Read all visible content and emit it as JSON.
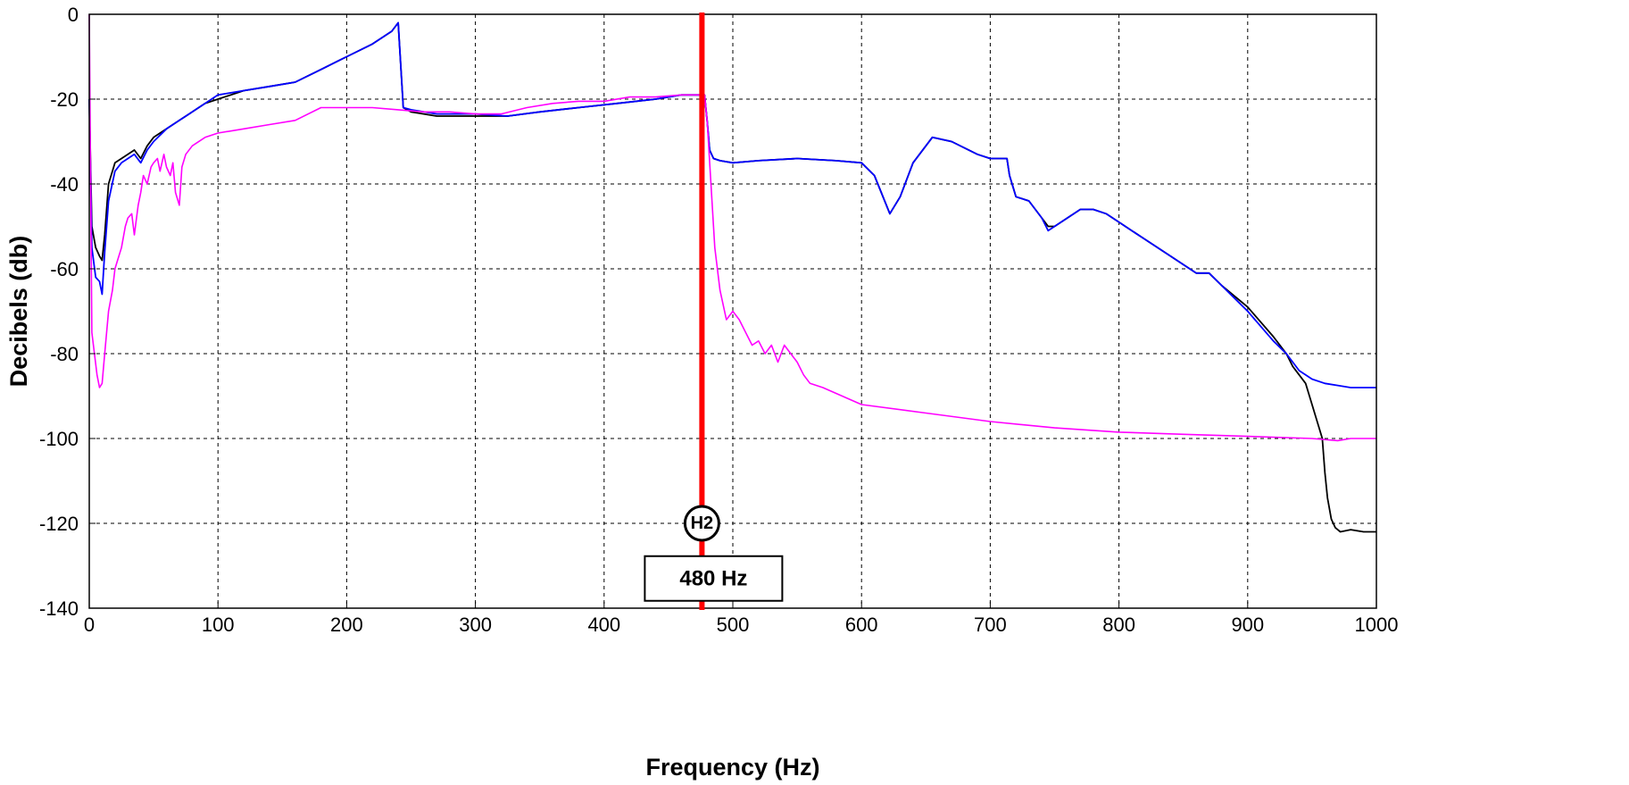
{
  "chart_data": {
    "type": "line",
    "title": "",
    "xlabel": "Frequency (Hz)",
    "ylabel": "Decibels (db)",
    "xlim": [
      0,
      1000
    ],
    "ylim": [
      -140,
      0
    ],
    "xticks": [
      0,
      100,
      200,
      300,
      400,
      500,
      600,
      700,
      800,
      900,
      1000
    ],
    "yticks": [
      0,
      -20,
      -40,
      -60,
      -80,
      -100,
      -120,
      -140
    ],
    "grid": true,
    "series": [
      {
        "color": "#000000",
        "x": [
          0,
          2,
          5,
          8,
          10,
          12,
          15,
          20,
          25,
          30,
          35,
          40,
          45,
          50,
          60,
          70,
          80,
          90,
          100,
          120,
          140,
          160,
          180,
          200,
          220,
          235,
          240,
          244,
          250,
          270,
          300,
          325,
          350,
          380,
          410,
          440,
          460,
          476,
          478,
          480,
          482,
          485,
          490,
          500,
          520,
          550,
          580,
          600,
          610,
          622,
          630,
          640,
          655,
          670,
          690,
          700,
          713,
          715,
          720,
          730,
          740,
          745,
          750,
          760,
          770,
          780,
          790,
          800,
          820,
          840,
          860,
          870,
          880,
          900,
          920,
          930,
          935,
          940,
          945,
          950,
          955,
          958,
          960,
          962,
          965,
          968,
          972,
          980,
          990,
          1000
        ],
        "y": [
          -20,
          -50,
          -55,
          -57,
          -58,
          -52,
          -40,
          -35,
          -34,
          -33,
          -32,
          -34,
          -31,
          -29,
          -27,
          -25,
          -23,
          -21,
          -20,
          -18,
          -17,
          -16,
          -13,
          -10,
          -7,
          -4,
          -2,
          -22,
          -23,
          -24,
          -24,
          -24,
          -23,
          -22,
          -21,
          -20,
          -19,
          -19,
          -19,
          -25,
          -32,
          -34,
          -34.5,
          -35,
          -34.5,
          -34,
          -34.5,
          -35,
          -38,
          -47,
          -43,
          -35,
          -29,
          -30,
          -33,
          -34,
          -34,
          -38,
          -43,
          -44,
          -48,
          -50,
          -50,
          -48,
          -46,
          -46,
          -47,
          -49,
          -53,
          -57,
          -61,
          -61,
          -64,
          -69,
          -76,
          -80,
          -83,
          -85,
          -87,
          -92,
          -97,
          -100,
          -108,
          -114,
          -119,
          -121,
          -122,
          -121.5,
          -122,
          -122
        ]
      },
      {
        "color": "#0000ff",
        "x": [
          0,
          2,
          5,
          8,
          10,
          12,
          15,
          20,
          25,
          30,
          35,
          40,
          45,
          50,
          60,
          70,
          80,
          90,
          100,
          120,
          140,
          160,
          180,
          200,
          220,
          235,
          240,
          244,
          250,
          270,
          300,
          325,
          350,
          380,
          410,
          440,
          460,
          476,
          478,
          480,
          482,
          485,
          490,
          500,
          520,
          550,
          580,
          600,
          610,
          622,
          630,
          640,
          655,
          670,
          690,
          700,
          713,
          715,
          720,
          730,
          740,
          745,
          750,
          760,
          770,
          780,
          790,
          800,
          820,
          840,
          860,
          870,
          880,
          900,
          920,
          930,
          940,
          950,
          960,
          970,
          980,
          1000
        ],
        "y": [
          -20,
          -55,
          -62,
          -63,
          -66,
          -56,
          -44,
          -37,
          -35,
          -34,
          -33,
          -35,
          -32,
          -30,
          -27,
          -25,
          -23,
          -21,
          -19,
          -18,
          -17,
          -16,
          -13,
          -10,
          -7,
          -4,
          -2,
          -22,
          -22.5,
          -23.5,
          -23.5,
          -24,
          -23,
          -22,
          -21,
          -20,
          -19,
          -19,
          -19,
          -25,
          -32,
          -34,
          -34.5,
          -35,
          -34.5,
          -34,
          -34.5,
          -35,
          -38,
          -47,
          -43,
          -35,
          -29,
          -30,
          -33,
          -34,
          -34,
          -38,
          -43,
          -44,
          -48,
          -51,
          -50,
          -48,
          -46,
          -46,
          -47,
          -49,
          -53,
          -57,
          -61,
          -61,
          -64,
          -70,
          -77,
          -80,
          -84,
          -86,
          -87,
          -87.5,
          -88,
          -88
        ]
      },
      {
        "color": "#ff00ff",
        "x": [
          0,
          2,
          4,
          6,
          8,
          10,
          12,
          15,
          18,
          20,
          22,
          25,
          28,
          30,
          33,
          35,
          38,
          40,
          42,
          45,
          48,
          50,
          53,
          55,
          58,
          60,
          63,
          65,
          67,
          70,
          72,
          75,
          80,
          90,
          100,
          120,
          140,
          160,
          180,
          200,
          220,
          240,
          260,
          280,
          300,
          320,
          340,
          360,
          380,
          400,
          420,
          440,
          460,
          476,
          478,
          480,
          483,
          486,
          490,
          495,
          500,
          505,
          510,
          515,
          520,
          525,
          530,
          535,
          540,
          545,
          550,
          555,
          560,
          570,
          600,
          650,
          700,
          750,
          800,
          850,
          900,
          950,
          970,
          980,
          1000
        ],
        "y": [
          0,
          -75,
          -80,
          -85,
          -88,
          -87,
          -80,
          -70,
          -65,
          -60,
          -58,
          -55,
          -50,
          -48,
          -47,
          -52,
          -45,
          -42,
          -38,
          -40,
          -36,
          -35,
          -34,
          -37,
          -33,
          -36,
          -38,
          -35,
          -42,
          -45,
          -36,
          -33,
          -31,
          -29,
          -28,
          -27,
          -26,
          -25,
          -22,
          -22,
          -22,
          -22.5,
          -23,
          -23,
          -23.5,
          -23.5,
          -22,
          -21,
          -20.5,
          -20.5,
          -19.5,
          -19.5,
          -19,
          -19,
          -19,
          -25,
          -40,
          -55,
          -65,
          -72,
          -70,
          -72,
          -75,
          -78,
          -77,
          -80,
          -78,
          -82,
          -78,
          -80,
          -82,
          -85,
          -87,
          -88,
          -92,
          -94,
          -96,
          -97.5,
          -98.5,
          -99,
          -99.5,
          -100,
          -100.5,
          -100,
          -100
        ]
      }
    ],
    "annotations": [
      {
        "type": "vline",
        "x": 476,
        "color": "#ff0000"
      },
      {
        "type": "circle-label",
        "x": 476,
        "y": -120,
        "text": "H2"
      },
      {
        "type": "box-label",
        "x": 476,
        "y": -133,
        "text": "480 Hz"
      }
    ]
  }
}
